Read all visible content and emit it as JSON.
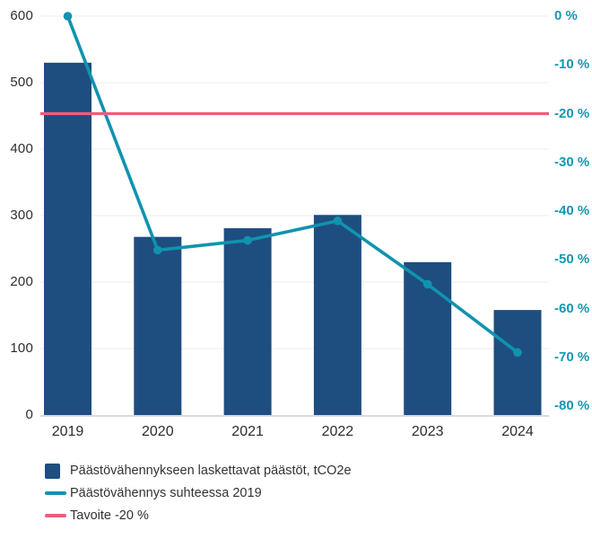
{
  "chart_data": {
    "type": "bar",
    "subtype": "bar-line-combo",
    "title": "",
    "categories": [
      "2019",
      "2020",
      "2021",
      "2022",
      "2023",
      "2024"
    ],
    "series": [
      {
        "name": "Päästövähennykseen laskettavat päästöt, tCO2e",
        "type": "bar",
        "axis": "left",
        "values": [
          530,
          268,
          281,
          301,
          230,
          158
        ]
      },
      {
        "name": "Päästövähennys suhteessa 2019",
        "type": "line",
        "axis": "right",
        "values_percent": [
          0,
          -48,
          -46,
          -42,
          -55,
          -69
        ]
      },
      {
        "name": "Tavoite -20 %",
        "type": "reference-line",
        "axis": "right",
        "value_percent": -20
      }
    ],
    "y_left": {
      "min": 0,
      "max": 600,
      "tick_labels": [
        "600",
        "500",
        "400",
        "300",
        "200",
        "100",
        "0"
      ]
    },
    "y_right": {
      "min": -80,
      "max": 0,
      "tick_labels": [
        "0 %",
        "-10 %",
        "-20 %",
        "-30 %",
        "-40 %",
        "-50 %",
        "-60 %",
        "-70 %",
        "-80 %"
      ]
    },
    "grid": "horizontal",
    "legend_position": "bottom-left",
    "legend": [
      {
        "label": "Päästövähennykseen laskettavat päästöt, tCO2e",
        "swatch": "square"
      },
      {
        "label": "Päästövähennys suhteessa 2019",
        "swatch": "line"
      },
      {
        "label": "Tavoite -20 %",
        "swatch": "line"
      }
    ]
  },
  "colors": {
    "bar_blue": "#1E4E80",
    "line_teal": "#1093AF",
    "right_axis_text": "#1596B4",
    "target_pink": "#F05C7A",
    "axis_text": "#2D2D2D",
    "gridline": "#ECECF1",
    "axis_line": "#DADADE",
    "legend_text": "#333333",
    "background": "#FFFFFF"
  }
}
